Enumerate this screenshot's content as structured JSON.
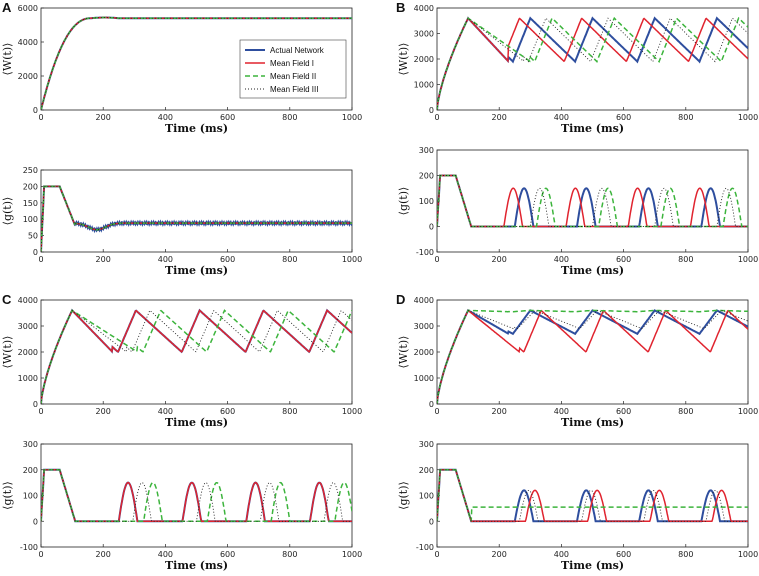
{
  "colors": {
    "actual": "#2e4e9e",
    "mf1": "#e0242f",
    "mf2": "#3cb43c",
    "mf3": "#222222"
  },
  "legend": [
    {
      "key": "actual",
      "label": "Actual Network"
    },
    {
      "key": "mf1",
      "label": "Mean Field I"
    },
    {
      "key": "mf2",
      "label": "Mean Field II"
    },
    {
      "key": "mf3",
      "label": "Mean Field III"
    }
  ],
  "chart_data": [
    {
      "id": "A-top",
      "panel_label": "A",
      "type": "line",
      "measure": "W",
      "xlabel": "Time (ms)",
      "ylabel": "⟨W(t)⟩",
      "xlim": [
        0,
        1000
      ],
      "ylim": [
        0,
        6000
      ],
      "xticks": [
        0,
        200,
        400,
        600,
        800,
        1000
      ],
      "yticks": [
        0,
        2000,
        4000,
        6000
      ],
      "sim": {
        "peak": 5400,
        "period": 0,
        "phase": 0,
        "steady": true
      }
    },
    {
      "id": "B-top",
      "panel_label": "B",
      "type": "line",
      "measure": "W",
      "xlabel": "Time (ms)",
      "ylabel": "⟨W(t)⟩",
      "xlim": [
        0,
        1000
      ],
      "ylim": [
        0,
        4000
      ],
      "xticks": [
        0,
        200,
        400,
        600,
        800,
        1000
      ],
      "yticks": [
        0,
        1000,
        2000,
        3000,
        4000
      ],
      "sim": {
        "peak": 3600,
        "period": 200,
        "phase": 0,
        "trough": 1900,
        "phases": {
          "actual": 0,
          "mf1": -35,
          "mf2": 70,
          "mf3": 50
        }
      }
    },
    {
      "id": "C-top",
      "panel_label": "C",
      "type": "line",
      "measure": "W",
      "xlabel": "Time (ms)",
      "ylabel": "⟨W(t)⟩",
      "xlim": [
        0,
        1000
      ],
      "ylim": [
        0,
        4000
      ],
      "xticks": [
        0,
        200,
        400,
        600,
        800,
        1000
      ],
      "yticks": [
        0,
        1000,
        2000,
        3000,
        4000
      ],
      "sim": {
        "peak": 3600,
        "period": 205,
        "phase": 0,
        "trough": 2000,
        "phases": {
          "actual": 0,
          "mf1": 0,
          "mf2": 80,
          "mf3": 45
        }
      }
    },
    {
      "id": "D-top",
      "panel_label": "D",
      "type": "line",
      "measure": "W",
      "xlabel": "Time (ms)",
      "ylabel": "⟨W(t)⟩",
      "xlim": [
        0,
        1000
      ],
      "ylim": [
        0,
        4000
      ],
      "xticks": [
        0,
        200,
        400,
        600,
        800,
        1000
      ],
      "yticks": [
        0,
        1000,
        2000,
        3000,
        4000
      ],
      "sim": {
        "peak": 3600,
        "period": 200,
        "phase": 0,
        "trough": 2700,
        "troughs": {
          "actual": 2700,
          "mf1": 2000,
          "mf2": 3550,
          "mf3": 2900
        },
        "phases": {
          "actual": 0,
          "mf1": 35,
          "mf2": 0,
          "mf3": 15
        }
      }
    },
    {
      "id": "A-bot",
      "panel_label": "",
      "type": "line",
      "measure": "g",
      "xlabel": "Time (ms)",
      "ylabel": "⟨g(t)⟩",
      "xlim": [
        0,
        1000
      ],
      "ylim": [
        0,
        250
      ],
      "xticks": [
        0,
        200,
        400,
        600,
        800,
        1000
      ],
      "yticks": [
        0,
        50,
        100,
        150,
        200,
        250
      ],
      "sim": {
        "peak": 200,
        "steady": true,
        "steady_value": 88
      }
    },
    {
      "id": "B-bot",
      "panel_label": "",
      "type": "line",
      "measure": "g",
      "xlabel": "Time (ms)",
      "ylabel": "⟨g(t)⟩",
      "xlim": [
        0,
        1000
      ],
      "ylim": [
        -100,
        300
      ],
      "xticks": [
        0,
        200,
        400,
        600,
        800,
        1000
      ],
      "yticks": [
        -100,
        0,
        100,
        200,
        300
      ],
      "sim": {
        "peak": 200,
        "period": 200,
        "burst": 150,
        "phases": {
          "actual": 0,
          "mf1": -35,
          "mf2": 70,
          "mf3": 50
        }
      }
    },
    {
      "id": "C-bot",
      "panel_label": "",
      "type": "line",
      "measure": "g",
      "xlabel": "Time (ms)",
      "ylabel": "⟨g(t)⟩",
      "xlim": [
        0,
        1000
      ],
      "ylim": [
        -100,
        300
      ],
      "xticks": [
        0,
        200,
        400,
        600,
        800,
        1000
      ],
      "yticks": [
        -100,
        0,
        100,
        200,
        300
      ],
      "sim": {
        "peak": 200,
        "period": 205,
        "burst": 150,
        "phases": {
          "actual": 0,
          "mf1": 0,
          "mf2": 80,
          "mf3": 45
        }
      }
    },
    {
      "id": "D-bot",
      "panel_label": "",
      "type": "line",
      "measure": "g",
      "xlabel": "Time (ms)",
      "ylabel": "⟨g(t)⟩",
      "xlim": [
        0,
        1000
      ],
      "ylim": [
        -100,
        300
      ],
      "xticks": [
        0,
        200,
        400,
        600,
        800,
        1000
      ],
      "yticks": [
        -100,
        0,
        100,
        200,
        300
      ],
      "sim": {
        "peak": 200,
        "period": 200,
        "burst": 120,
        "mf2_level": 55,
        "phases": {
          "actual": 0,
          "mf1": 35,
          "mf2": 0,
          "mf3": 15
        }
      }
    }
  ]
}
